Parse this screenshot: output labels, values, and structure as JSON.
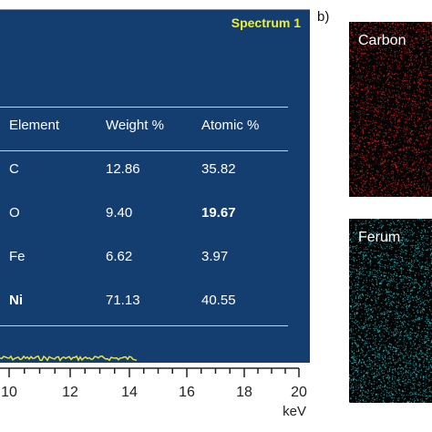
{
  "panel_a": {
    "spectrum_label": "Spectrum 1",
    "table": {
      "headers": [
        "Element",
        "Weight %",
        "Atomic %"
      ],
      "rows": [
        {
          "element": "C",
          "weight": "12.86",
          "atomic": "35.82"
        },
        {
          "element": "O",
          "weight": "9.40",
          "atomic": "19.67"
        },
        {
          "element": "Fe",
          "weight": "6.62",
          "atomic": "3.97"
        },
        {
          "element": "Ni",
          "weight": "71.13",
          "atomic": "40.55"
        }
      ]
    },
    "x_axis": {
      "tick_labels": [
        "10",
        "12",
        "14",
        "16",
        "18",
        "20"
      ],
      "unit": "keV"
    }
  },
  "panel_b": {
    "letter": "b)",
    "maps": [
      {
        "label": "Carbon",
        "dot_color": "#ff2a2a"
      },
      {
        "label": "Ferum",
        "dot_color": "#3fd6e0"
      }
    ]
  },
  "colors": {
    "panel_bg": "#143d70",
    "spectrum_label": "#f2ef2a",
    "trace": "#e8e23a"
  }
}
